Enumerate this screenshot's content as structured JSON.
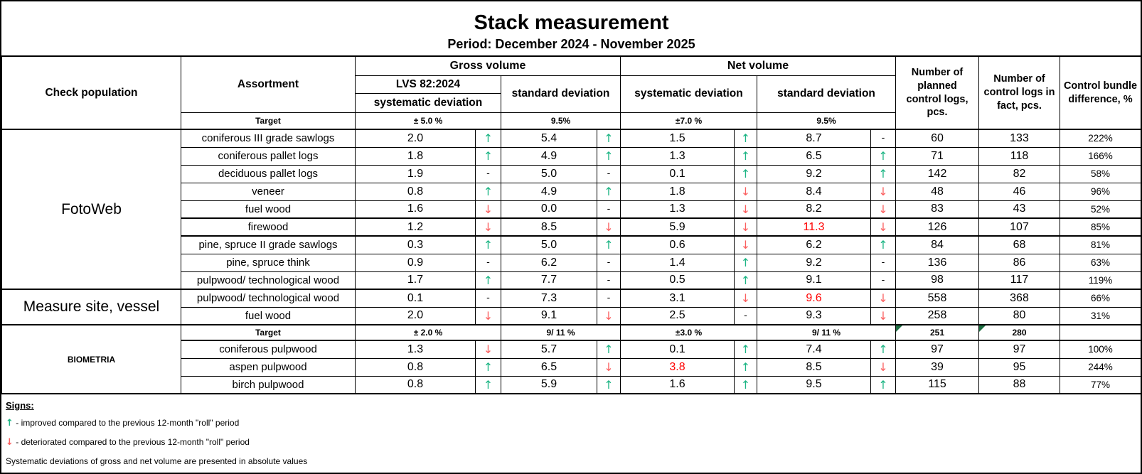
{
  "title": "Stack measurement",
  "period": "Period: December 2024 - November 2025",
  "colors": {
    "up_arrow": "#1db584",
    "down_arrow": "#fb5f5f",
    "alert_value": "#ff0000",
    "flag_triangle": "#1d6f42",
    "border": "#000000"
  },
  "trend_glyphs": {
    "up": "↑",
    "down": "↓",
    "dash": "-"
  },
  "header": {
    "check_population": "Check population",
    "assortment": "Assortment",
    "gross_volume": "Gross volume",
    "net_volume": "Net volume",
    "lvs": "LVS 82:2024",
    "systematic_deviation": "systematic deviation",
    "standard_deviation": "standard deviation",
    "planned_logs": "Number of planned control logs, pcs.",
    "fact_logs": "Number of control logs in fact, pcs.",
    "control_bundle": "Control bundle difference, %"
  },
  "top_target": {
    "label": "Target",
    "gross_sys": "± 5.0 %",
    "gross_std": "9.5%",
    "net_sys": "±7.0 %",
    "net_std": "9.5%"
  },
  "sections": [
    {
      "name": "FotoWeb",
      "rows": [
        {
          "assortment": "coniferous III grade sawlogs",
          "gross_sys": "2.0",
          "gross_sys_trend": "up",
          "gross_std": "5.4",
          "gross_std_trend": "up",
          "net_sys": "1.5",
          "net_sys_trend": "up",
          "net_std": "8.7",
          "net_std_trend": "dash",
          "planned": "60",
          "fact": "133",
          "diff": "222%"
        },
        {
          "assortment": "coniferous pallet logs",
          "gross_sys": "1.8",
          "gross_sys_trend": "up",
          "gross_std": "4.9",
          "gross_std_trend": "up",
          "net_sys": "1.3",
          "net_sys_trend": "up",
          "net_std": "6.5",
          "net_std_trend": "up",
          "planned": "71",
          "fact": "118",
          "diff": "166%"
        },
        {
          "assortment": "deciduous pallet logs",
          "gross_sys": "1.9",
          "gross_sys_trend": "dash",
          "gross_std": "5.0",
          "gross_std_trend": "dash",
          "net_sys": "0.1",
          "net_sys_trend": "up",
          "net_std": "9.2",
          "net_std_trend": "up",
          "planned": "142",
          "fact": "82",
          "diff": "58%"
        },
        {
          "assortment": "veneer",
          "gross_sys": "0.8",
          "gross_sys_trend": "up",
          "gross_std": "4.9",
          "gross_std_trend": "up",
          "net_sys": "1.8",
          "net_sys_trend": "down",
          "net_std": "8.4",
          "net_std_trend": "down",
          "planned": "48",
          "fact": "46",
          "diff": "96%"
        },
        {
          "assortment": "fuel wood",
          "gross_sys": "1.6",
          "gross_sys_trend": "down",
          "gross_std": "0.0",
          "gross_std_trend": "dash",
          "net_sys": "1.3",
          "net_sys_trend": "down",
          "net_std": "8.2",
          "net_std_trend": "down",
          "planned": "83",
          "fact": "43",
          "diff": "52%"
        },
        {
          "assortment": "firewood",
          "thick": true,
          "gross_sys": "1.2",
          "gross_sys_trend": "down",
          "gross_std": "8.5",
          "gross_std_trend": "down",
          "net_sys": "5.9",
          "net_sys_trend": "down",
          "net_std": "11.3",
          "net_std_alert": true,
          "net_std_trend": "down",
          "planned": "126",
          "fact": "107",
          "diff": "85%"
        },
        {
          "assortment": "pine, spruce II grade sawlogs",
          "gross_sys": "0.3",
          "gross_sys_trend": "up",
          "gross_std": "5.0",
          "gross_std_trend": "up",
          "net_sys": "0.6",
          "net_sys_trend": "down",
          "net_std": "6.2",
          "net_std_trend": "up",
          "planned": "84",
          "fact": "68",
          "diff": "81%"
        },
        {
          "assortment": "pine, spruce think",
          "gross_sys": "0.9",
          "gross_sys_trend": "dash",
          "gross_std": "6.2",
          "gross_std_trend": "dash",
          "net_sys": "1.4",
          "net_sys_trend": "up",
          "net_std": "9.2",
          "net_std_trend": "dash",
          "planned": "136",
          "fact": "86",
          "diff": "63%"
        },
        {
          "assortment": "pulpwood/ technological wood",
          "gross_sys": "1.7",
          "gross_sys_trend": "up",
          "gross_std": "7.7",
          "gross_std_trend": "dash",
          "net_sys": "0.5",
          "net_sys_trend": "up",
          "net_std": "9.1",
          "net_std_trend": "dash",
          "planned": "98",
          "fact": "117",
          "diff": "119%"
        }
      ]
    },
    {
      "name": "Measure site, vessel",
      "rows": [
        {
          "assortment": "pulpwood/ technological wood",
          "gross_sys": "0.1",
          "gross_sys_trend": "dash",
          "gross_std": "7.3",
          "gross_std_trend": "dash",
          "net_sys": "3.1",
          "net_sys_trend": "down",
          "net_std": "9.6",
          "net_std_alert": true,
          "net_std_trend": "down",
          "planned": "558",
          "fact": "368",
          "diff": "66%"
        },
        {
          "assortment": "fuel wood",
          "gross_sys": "2.0",
          "gross_sys_trend": "down",
          "gross_std": "9.1",
          "gross_std_trend": "down",
          "net_sys": "2.5",
          "net_sys_trend": "dash",
          "net_std": "9.3",
          "net_std_trend": "down",
          "planned": "258",
          "fact": "80",
          "diff": "31%"
        }
      ]
    },
    {
      "name": "BIOMETRIA",
      "target_row": {
        "label": "Target",
        "gross_sys": "± 2.0 %",
        "gross_std": "9/ 11 %",
        "net_sys": "±3.0 %",
        "net_std": "9/ 11 %",
        "planned": "251",
        "fact": "280",
        "diff": ""
      },
      "rows": [
        {
          "assortment": "coniferous pulpwood",
          "gross_sys": "1.3",
          "gross_sys_trend": "down",
          "gross_std": "5.7",
          "gross_std_trend": "up",
          "net_sys": "0.1",
          "net_sys_trend": "up",
          "net_std": "7.4",
          "net_std_trend": "up",
          "planned": "97",
          "fact": "97",
          "diff": "100%"
        },
        {
          "assortment": "aspen pulpwood",
          "gross_sys": "0.8",
          "gross_sys_trend": "up",
          "gross_std": "6.5",
          "gross_std_trend": "down",
          "net_sys": "3.8",
          "net_sys_alert": true,
          "net_sys_trend": "up",
          "net_std": "8.5",
          "net_std_trend": "down",
          "planned": "39",
          "fact": "95",
          "diff": "244%"
        },
        {
          "assortment": "birch pulpwood",
          "gross_sys": "0.8",
          "gross_sys_trend": "up",
          "gross_std": "5.9",
          "gross_std_trend": "up",
          "net_sys": "1.6",
          "net_sys_trend": "up",
          "net_std": "9.5",
          "net_std_trend": "up",
          "planned": "115",
          "fact": "88",
          "diff": "77%"
        }
      ]
    }
  ],
  "legend": {
    "heading": "Signs:",
    "items": [
      {
        "symbol": "↑",
        "trend": "up",
        "text": "- improved compared to the previous 12-month \"roll\" period"
      },
      {
        "symbol": "↓",
        "trend": "down",
        "text": "- deteriorated compared to the previous 12-month \"roll\" period"
      }
    ],
    "note": "Systematic deviations of gross and net volume are presented in absolute values"
  }
}
